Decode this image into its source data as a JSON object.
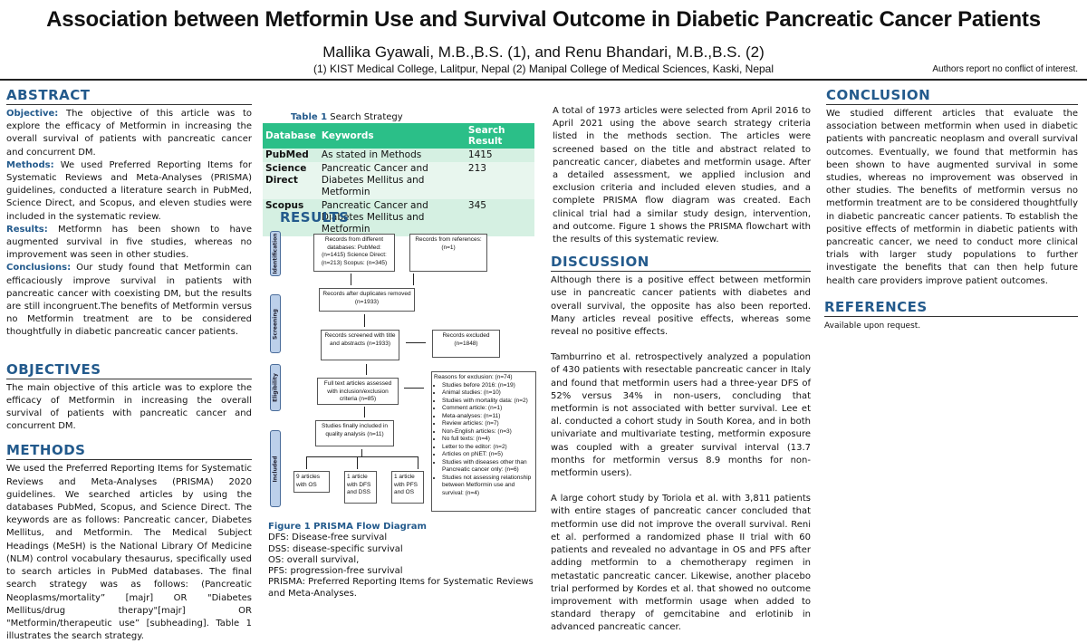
{
  "header": {
    "title": "Association between Metformin Use and Survival Outcome in Diabetic Pancreatic Cancer Patients",
    "authors": "Mallika Gyawali, M.B.,B.S. (1),  and Renu Bhandari, M.B.,B.S. (2)",
    "affiliations": "(1) KIST Medical College, Lalitpur, Nepal (2) Manipal College of Medical Sciences, Kaski, Nepal",
    "conflict": "Authors report no conflict of interest."
  },
  "abstract": {
    "heading": "ABSTRACT",
    "objective_label": "Objective:",
    "objective": " The objective of this article was to explore the efficacy of Metformin in increasing the overall survival of patients with pancreatic cancer and concurrent DM.",
    "methods_label": "Methods:",
    "methods": " We used Preferred Reporting Items for Systematic Reviews and Meta-Analyses (PRISMA) guidelines, conducted a literature search in PubMed, Science Direct, and Scopus, and eleven studies were included in the systematic review.",
    "results_label": "Results:",
    "results": " Metformn has been shown to have augmented survival in five studies, whereas no improvement was seen in other studies.",
    "conclusions_label": "Conclusions:",
    "conclusions": " Our study found that Metformin can efficaciously improve survival in patients with pancreatic cancer with coexisting DM, but the results are still incongruent.The benefits of Metformin versus no Metformin treatment are to be considered thoughtfully in diabetic pancreatic cancer patients."
  },
  "objectives": {
    "heading": "OBJECTIVES",
    "text": "The main objective of this article was to explore the efficacy of Metformin in increasing the overall survival of patients with pancreatic cancer and concurrent DM."
  },
  "methods": {
    "heading": "METHODS",
    "text": "We used the Preferred Reporting Items for Systematic Reviews and Meta-Analyses (PRISMA) 2020 guidelines. We searched articles by using the databases PubMed, Scopus, and Science Direct. The keywords are as follows: Pancreatic cancer, Diabetes Mellitus, and Metformin. The Medical Subject Headings (MeSH) is the National Library Of Medicine (NLM) control vocabulary thesaurus, specifically used to search articles in PubMed databases. The final search strategy was as follows: (Pancreatic Neoplasms/mortality” [majr] OR  \"Diabetes Mellitus/drug therapy\"[majr] OR \"Metformin/therapeutic use” [subheading]. Table 1 illustrates the search strategy."
  },
  "table": {
    "caption_num": "Table 1",
    "caption": " Search Strategy",
    "headers": [
      "Database",
      "Keywords",
      "Search Result"
    ],
    "rows": [
      [
        "PubMed",
        "As stated in Methods",
        "1415"
      ],
      [
        "Science Direct",
        "Pancreatic Cancer and Diabetes Mellitus and Metformin",
        "213"
      ],
      [
        "Scopus",
        "Pancreatic Cancer and Diabetes Mellitus and Metformin",
        "345"
      ]
    ]
  },
  "results": {
    "heading": "RESULTS"
  },
  "prisma": {
    "stages": [
      "Identification",
      "Screening",
      "Eligibility",
      "Included"
    ],
    "db": "Records from different databases: PubMed: (n=1415) Science Direct: (n=213) Scopus: (n=345)",
    "refs": "Records from references: (n=1)",
    "dedup": "Records after duplicates removed (n=1933)",
    "screened": "Records screened with title and abstracts (n=1933)",
    "excluded": "Records excluded (n=1848)",
    "fulltext": "Full text articles assessed with inclusion/exclusion criteria (n=85)",
    "included": "Studies finally included in quality analysis (n=11)",
    "out1": "9 articles with OS",
    "out2": "1 article with DFS and DSS",
    "out3": "1 article with PFS and OS",
    "reasons_title": "Reasons for exclusion: (n=74)",
    "reasons": [
      "Studies before 2016: (n=19)",
      "Animal studies: (n=10)",
      "Studies with mortality data: (n=2)",
      "Comment article: (n=1)",
      "Meta-analyses: (n=11)",
      "Review articles: (n=7)",
      "Non-English articles: (n=3)",
      "No full texts: (n=4)",
      "Letter to the editor: (n=2)",
      "Articles on pNET: (n=5)",
      "Studies with diseases other than Pancreatic cancer only: (n=6)",
      "Studies not assessing relationship between Metformin use and survival: (n=4)"
    ]
  },
  "figure": {
    "caption": "Figure 1 PRISMA Flow Diagram",
    "legend": [
      "DFS: Disease-free survival",
      "DSS: disease-specific survival",
      "OS: overall survival,",
      "PFS: progression-free survival",
      "PRISMA: Preferred Reporting Items for Systematic Reviews and Meta-Analyses."
    ]
  },
  "results_text": "A total of 1973 articles were selected from April 2016 to April 2021 using the above search strategy criteria listed in the methods section. The articles were screened based on the title and abstract related to pancreatic cancer, diabetes and metformin usage. After a detailed assessment, we applied inclusion and exclusion criteria and included eleven studies, and a complete PRISMA flow diagram was created. Each clinical trial had a similar study design, intervention, and outcome. Figure 1 shows the PRISMA flowchart with the results of this systematic review.",
  "discussion": {
    "heading": "DISCUSSION",
    "paragraphs": [
      "Although there is a positive effect between metformin use in pancreatic cancer patients with diabetes and overall survival, the opposite has also been reported. Many articles reveal positive effects, whereas some reveal no positive effects.",
      "Tamburrino et al. retrospectively analyzed a population of 430 patients with resectable pancreatic cancer in Italy and found that metformin users had a three-year DFS of 52% versus 34% in non-users, concluding that metformin is not associated with better survival.  Lee et al. conducted a cohort study in South Korea, and in both univariate and multivariate testing, metformin exposure was coupled with a greater survival interval (13.7 months for metformin versus 8.9 months for non-metformin users).",
      "A large cohort study by Toriola et al. with 3,811 patients with entire stages of pancreatic cancer concluded that metformin use did not improve the overall survival. Reni et al. performed a randomized phase II trial with 60 patients and revealed no advantage in OS and PFS after adding metformin to a chemotherapy regimen in metastatic pancreatic cancer. Likewise, another placebo trial performed by Kordes et al. that showed no outcome improvement with metformin usage when added to standard therapy of gemcitabine and erlotinib in advanced pancreatic cancer."
    ]
  },
  "conclusion": {
    "heading": "CONCLUSION",
    "text": "We studied different articles that evaluate the association between metformin when used in diabetic patients with pancreatic neoplasm and overall survival outcomes. Eventually, we found that metformin has been shown to have augmented survival in some studies, whereas no improvement was observed in other studies. The benefits of metformin versus no metformin treatment are to be considered thoughtfully in diabetic pancreatic cancer patients. To establish the positive effects of metformin in diabetic patients with pancreatic cancer, we need to conduct more clinical trials with larger study populations to further investigate the benefits that can then help future health care providers improve patient outcomes."
  },
  "references": {
    "heading": "REFERENCES",
    "text": "Available upon request."
  }
}
